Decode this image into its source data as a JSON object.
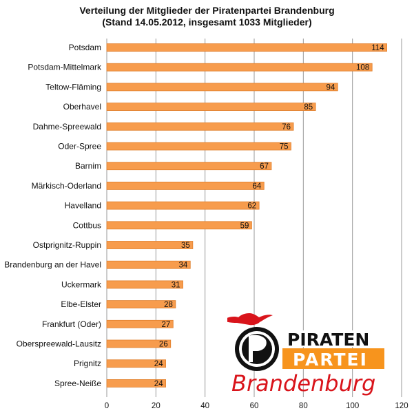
{
  "chart_data": {
    "type": "bar",
    "orientation": "horizontal",
    "title": "Verteilung der Mitglieder der Piratenpartei Brandenburg",
    "subtitle": "(Stand 14.05.2012, insgesamt 1033 Mitglieder)",
    "categories": [
      "Potsdam",
      "Potsdam-Mittelmark",
      "Teltow-Fläming",
      "Oberhavel",
      "Dahme-Spreewald",
      "Oder-Spree",
      "Barnim",
      "Märkisch-Oderland",
      "Havelland",
      "Cottbus",
      "Ostprignitz-Ruppin",
      "Brandenburg an der Havel",
      "Uckermark",
      "Elbe-Elster",
      "Frankfurt (Oder)",
      "Oberspreewald-Lausitz",
      "Prignitz",
      "Spree-Neiße"
    ],
    "values": [
      114,
      108,
      94,
      85,
      76,
      75,
      67,
      64,
      62,
      59,
      35,
      34,
      31,
      28,
      27,
      26,
      24,
      24
    ],
    "xlim": [
      0,
      120
    ],
    "xticks": [
      0,
      20,
      40,
      60,
      80,
      100,
      120
    ],
    "xlabel": "",
    "ylabel": "",
    "grid": true,
    "bar_color": "#f79c4d",
    "bar_edge_color": "#e07f2c",
    "grid_color": "#9a9a9a"
  },
  "logo": {
    "line1": "PIRATEN",
    "line2": "PARTEI",
    "line3": "Brandenburg",
    "black": "#111111",
    "orange": "#f7941d",
    "red": "#d9141b"
  }
}
